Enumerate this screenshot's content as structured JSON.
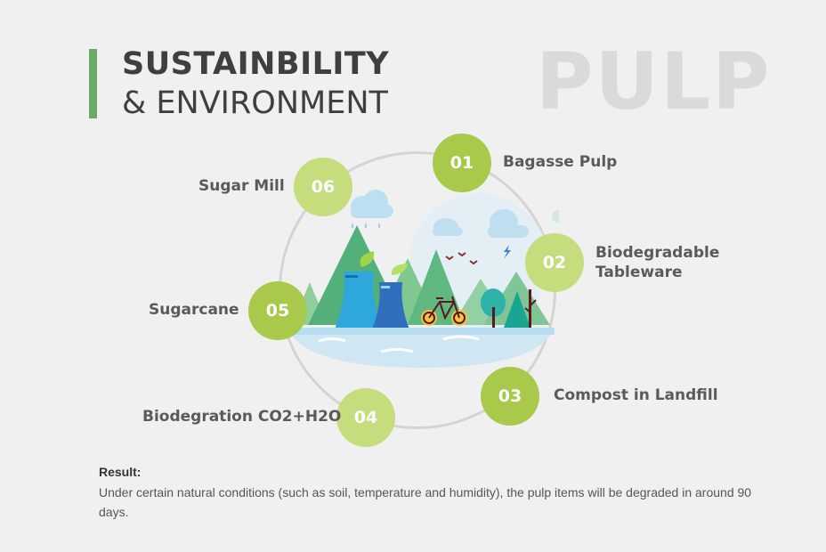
{
  "header": {
    "title_line1": "SUSTAINBILITY",
    "title_line2": "& ENVIRONMENT",
    "watermark": "PULP"
  },
  "colors": {
    "accent_bar": "#6aaa64",
    "badge_dark": "#a9c94a",
    "badge_light": "#c5dd7c"
  },
  "cycle": {
    "steps": [
      {
        "number": "01",
        "label": "Bagasse Pulp"
      },
      {
        "number": "02",
        "label_line1": "Biodegradable",
        "label_line2": "Tableware"
      },
      {
        "number": "03",
        "label": "Compost in Landfill"
      },
      {
        "number": "04",
        "label": "Biodegration CO2+H2O"
      },
      {
        "number": "05",
        "label": "Sugarcane"
      },
      {
        "number": "06",
        "label": "Sugar Mill"
      }
    ]
  },
  "result": {
    "title": "Result:",
    "text": "Under certain natural conditions (such as soil, temperature and humidity), the pulp items will be degraded in around 90 days."
  }
}
